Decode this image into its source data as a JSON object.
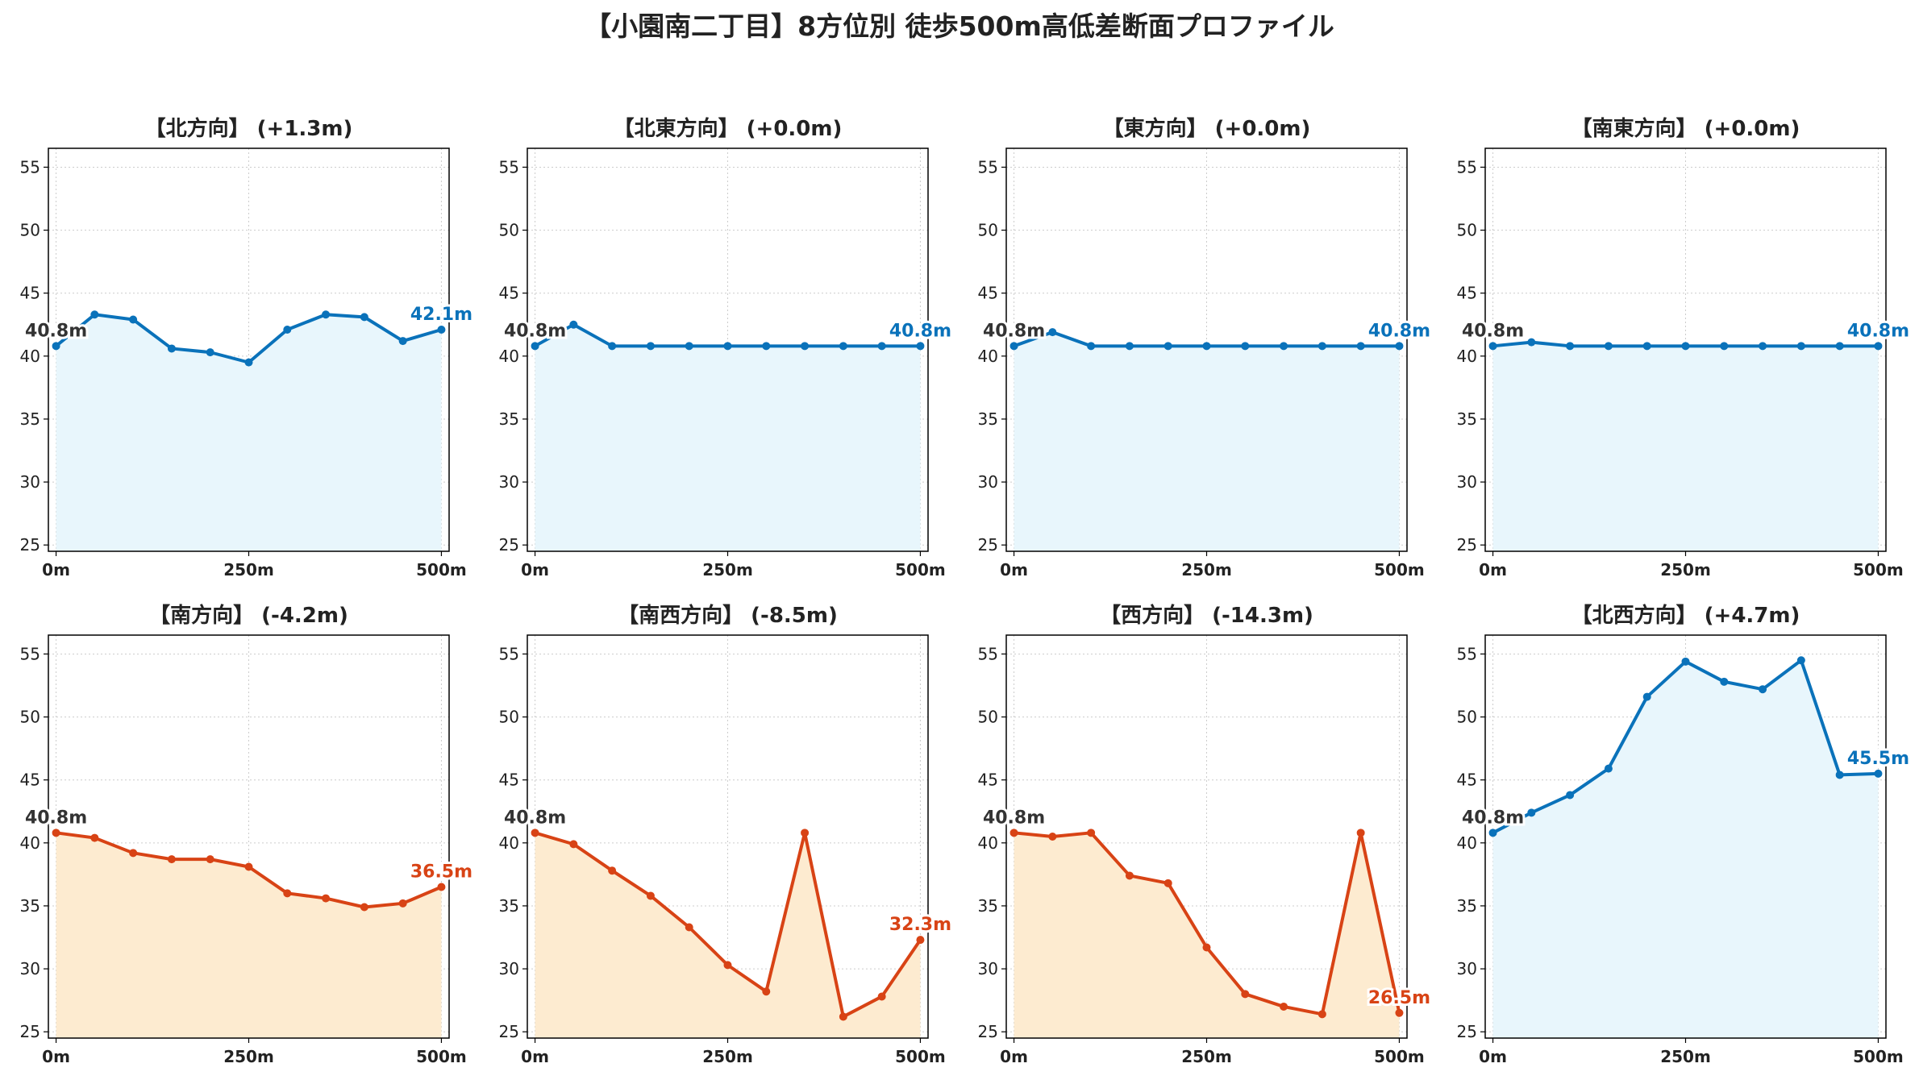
{
  "title": "【小園南二丁目】8方位別 徒歩500m高低差断面プロファイル",
  "colors": {
    "rise_line": "#0A72BA",
    "rise_fill": "#E8F6FC",
    "fall_line": "#D84315",
    "fall_fill": "#FDEBD0",
    "start_label": "#333333",
    "grid": "#cccccc",
    "frame": "#000000"
  },
  "axes": {
    "xlim": [
      -10,
      510
    ],
    "ylim": [
      24.5,
      56.5
    ],
    "x_ticks": [
      0,
      250,
      500
    ],
    "x_tick_labels": [
      "0m",
      "250m",
      "500m"
    ],
    "y_ticks": [
      25,
      30,
      35,
      40,
      45,
      50,
      55
    ],
    "y_tick_labels": [
      "25",
      "30",
      "35",
      "40",
      "45",
      "50",
      "55"
    ],
    "grid": true,
    "fill_baseline": 24.5
  },
  "chart_data": [
    {
      "type": "area",
      "title": "【北方向】 (+1.3m)",
      "trend": "rise",
      "x": [
        0,
        50,
        100,
        150,
        200,
        250,
        300,
        350,
        400,
        450,
        500
      ],
      "y": [
        40.8,
        43.3,
        42.9,
        40.6,
        40.3,
        39.5,
        42.1,
        43.3,
        43.1,
        41.2,
        42.1
      ],
      "start_label": "40.8m",
      "end_label": "42.1m"
    },
    {
      "type": "area",
      "title": "【北東方向】 (+0.0m)",
      "trend": "rise",
      "x": [
        0,
        50,
        100,
        150,
        200,
        250,
        300,
        350,
        400,
        450,
        500
      ],
      "y": [
        40.8,
        42.5,
        40.8,
        40.8,
        40.8,
        40.8,
        40.8,
        40.8,
        40.8,
        40.8,
        40.8
      ],
      "start_label": "40.8m",
      "end_label": "40.8m"
    },
    {
      "type": "area",
      "title": "【東方向】 (+0.0m)",
      "trend": "rise",
      "x": [
        0,
        50,
        100,
        150,
        200,
        250,
        300,
        350,
        400,
        450,
        500
      ],
      "y": [
        40.8,
        41.9,
        40.8,
        40.8,
        40.8,
        40.8,
        40.8,
        40.8,
        40.8,
        40.8,
        40.8
      ],
      "start_label": "40.8m",
      "end_label": "40.8m"
    },
    {
      "type": "area",
      "title": "【南東方向】 (+0.0m)",
      "trend": "rise",
      "x": [
        0,
        50,
        100,
        150,
        200,
        250,
        300,
        350,
        400,
        450,
        500
      ],
      "y": [
        40.8,
        41.1,
        40.8,
        40.8,
        40.8,
        40.8,
        40.8,
        40.8,
        40.8,
        40.8,
        40.8
      ],
      "start_label": "40.8m",
      "end_label": "40.8m"
    },
    {
      "type": "area",
      "title": "【南方向】 (-4.2m)",
      "trend": "fall",
      "x": [
        0,
        50,
        100,
        150,
        200,
        250,
        300,
        350,
        400,
        450,
        500
      ],
      "y": [
        40.8,
        40.4,
        39.2,
        38.7,
        38.7,
        38.1,
        36.0,
        35.6,
        34.9,
        35.2,
        36.5
      ],
      "start_label": "40.8m",
      "end_label": "36.5m"
    },
    {
      "type": "area",
      "title": "【南西方向】 (-8.5m)",
      "trend": "fall",
      "x": [
        0,
        50,
        100,
        150,
        200,
        250,
        300,
        350,
        400,
        450,
        500
      ],
      "y": [
        40.8,
        39.9,
        37.8,
        35.8,
        33.3,
        30.3,
        28.2,
        40.8,
        26.2,
        27.8,
        32.3
      ],
      "start_label": "40.8m",
      "end_label": "32.3m"
    },
    {
      "type": "area",
      "title": "【西方向】 (-14.3m)",
      "trend": "fall",
      "x": [
        0,
        50,
        100,
        150,
        200,
        250,
        300,
        350,
        400,
        450,
        500
      ],
      "y": [
        40.8,
        40.5,
        40.8,
        37.4,
        36.8,
        31.7,
        28.0,
        27.0,
        26.4,
        40.8,
        26.5
      ],
      "start_label": "40.8m",
      "end_label": "26.5m"
    },
    {
      "type": "area",
      "title": "【北西方向】 (+4.7m)",
      "trend": "rise",
      "x": [
        0,
        50,
        100,
        150,
        200,
        250,
        300,
        350,
        400,
        450,
        500
      ],
      "y": [
        40.8,
        42.4,
        43.8,
        45.9,
        51.6,
        54.4,
        52.8,
        52.2,
        54.5,
        45.4,
        45.5
      ],
      "start_label": "40.8m",
      "end_label": "45.5m"
    }
  ]
}
